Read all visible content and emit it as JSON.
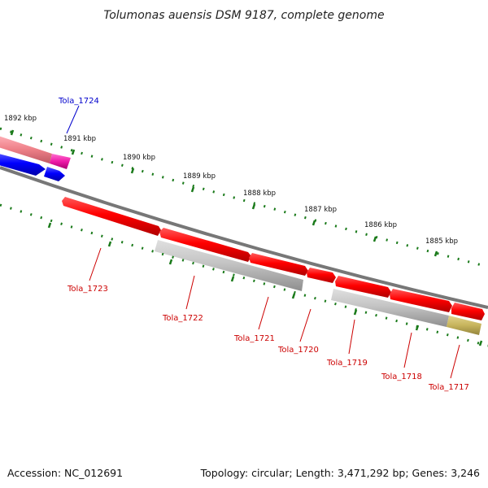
{
  "title": "Tolumonas auensis DSM 9187, complete genome",
  "footer": {
    "accession": "Accession: NC_012691",
    "topology": "Topology: circular; Length: 3,471,292 bp; Genes: 3,246"
  },
  "kbp_labels": [
    "1892 kbp",
    "1891 kbp",
    "1890 kbp",
    "1889 kbp",
    "1888 kbp",
    "1887 kbp",
    "1886 kbp",
    "1885 kbp"
  ],
  "genes": [
    {
      "name": "Tola_1724",
      "color": "#0000cc"
    },
    {
      "name": "Tola_1723",
      "color": "#cc0000"
    },
    {
      "name": "Tola_1722",
      "color": "#cc0000"
    },
    {
      "name": "Tola_1721",
      "color": "#cc0000"
    },
    {
      "name": "Tola_1720",
      "color": "#cc0000"
    },
    {
      "name": "Tola_1719",
      "color": "#cc0000"
    },
    {
      "name": "Tola_1718",
      "color": "#cc0000"
    },
    {
      "name": "Tola_1717",
      "color": "#cc0000"
    }
  ],
  "colors": {
    "backbone": "#777777",
    "tick": "#1a7a1a",
    "gene_red": "#ee0000",
    "gene_blue": "#0000ee",
    "gene_grey": "#bbbbbb",
    "gene_pink": "#ee7a86",
    "gene_magenta": "#ee1aa8",
    "gene_olive": "#c6b45c"
  }
}
